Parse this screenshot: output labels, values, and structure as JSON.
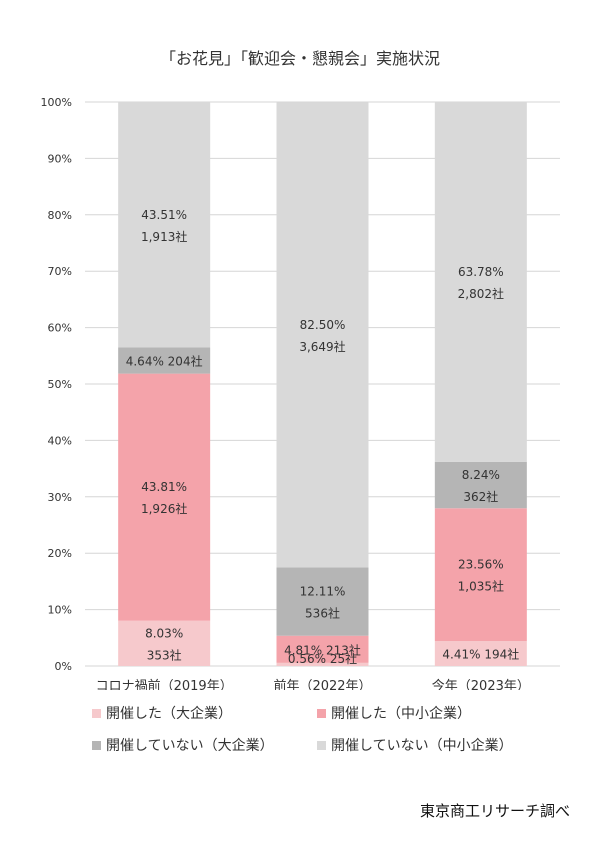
{
  "chart_data": {
    "type": "bar",
    "stacked": true,
    "title": "「お花見」「歓迎会・懇親会」実施状況",
    "categories": [
      "コロナ禍前（2019年）",
      "前年（2022年）",
      "今年（2023年）"
    ],
    "ylim": [
      0,
      100
    ],
    "yticks": [
      "0%",
      "10%",
      "20%",
      "30%",
      "40%",
      "50%",
      "60%",
      "70%",
      "80%",
      "90%",
      "100%"
    ],
    "grid": true,
    "legend_position": "bottom",
    "series": [
      {
        "name": "開催した（大企業）",
        "color": "#f6c9cc",
        "values": [
          8.03,
          0.56,
          4.41
        ],
        "labels": [
          [
            "8.03%",
            "353社"
          ],
          [
            "0.56% 25社"
          ],
          [
            "4.41% 194社"
          ]
        ]
      },
      {
        "name": "開催した（中小企業）",
        "color": "#f4a3aa",
        "values": [
          43.81,
          4.81,
          23.56
        ],
        "labels": [
          [
            "43.81%",
            "1,926社"
          ],
          [
            "4.81% 213社"
          ],
          [
            "23.56%",
            "1,035社"
          ]
        ]
      },
      {
        "name": "開催していない（大企業）",
        "color": "#b5b5b5",
        "values": [
          4.64,
          12.11,
          8.24
        ],
        "labels": [
          [
            "4.64% 204社"
          ],
          [
            "12.11%",
            "536社"
          ],
          [
            "8.24%",
            "362社"
          ]
        ]
      },
      {
        "name": "開催していない（中小企業）",
        "color": "#d9d9d9",
        "values": [
          43.51,
          82.5,
          63.78
        ],
        "labels": [
          [
            "43.51%",
            "1,913社"
          ],
          [
            "82.50%",
            "3,649社"
          ],
          [
            "63.78%",
            "2,802社"
          ]
        ]
      }
    ]
  },
  "source": "東京商工リサーチ調べ"
}
